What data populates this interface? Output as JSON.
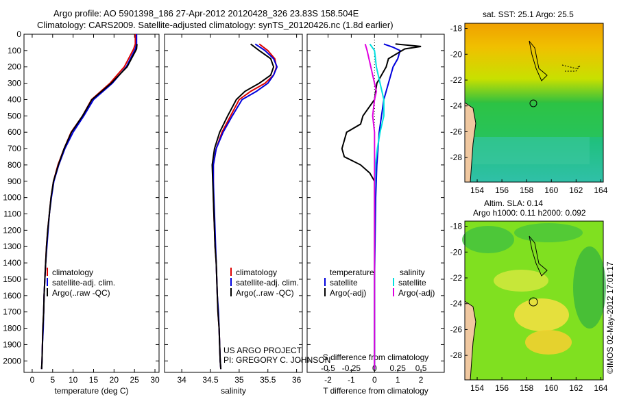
{
  "header": {
    "line1": "Argo profile: AO 5901398_186 27-Apr-2012 20120428_326 23.83S 158.504E",
    "line2": "Climatology: CARS2009. Satellite-adjusted climatology: synTS_20120426.nc (1.8d earlier)"
  },
  "map_top": {
    "title": "sat. SST: 25.1  Argo: 25.5",
    "x_ticks": [
      "154",
      "156",
      "158",
      "160",
      "162",
      "164"
    ],
    "y_ticks": [
      "-18",
      "-20",
      "-22",
      "-24",
      "-26",
      "-28"
    ]
  },
  "map_bottom": {
    "title1": "Altim. SLA: 0.14",
    "title2": "Argo h1000: 0.11  h2000: 0.092",
    "x_ticks": [
      "154",
      "156",
      "158",
      "160",
      "162",
      "164"
    ],
    "y_ticks": [
      "-18",
      "-20",
      "-22",
      "-24",
      "-26",
      "-28"
    ]
  },
  "credit": {
    "line1": "US ARGO PROJECT",
    "line2": "PI: GREGORY C. JOHNSON"
  },
  "timestamp": "©IMOS 02-May-2012 17:01:17",
  "colors": {
    "climatology": "#dd0000",
    "satellite": "#0000dd",
    "argo": "#000000",
    "sat_salinity": "#00e0e0",
    "argo_salinity": "#e000e0"
  },
  "legend": {
    "temp": [
      "climatology",
      "satellite-adj. clim.",
      "Argo(..raw -QC)"
    ],
    "sal": [
      "climatology",
      "satellite-adj. clim.",
      "Argo(..raw -QC)"
    ],
    "diff_t_title": "temperature",
    "diff_s_title": "salinity",
    "diff_t": [
      "satellite",
      "Argo(-adj)"
    ],
    "diff_s": [
      "satellite",
      "Argo(-adj)"
    ]
  },
  "chart_data": [
    {
      "type": "line",
      "xlabel": "temperature (deg C)",
      "x_ticks": [
        "0",
        "5",
        "10",
        "15",
        "20",
        "25",
        "30"
      ],
      "xlim": [
        -2,
        31
      ],
      "ylim": [
        0,
        2070
      ],
      "y_ticks": [
        "0",
        "100",
        "200",
        "300",
        "400",
        "500",
        "600",
        "700",
        "800",
        "900",
        "1000",
        "1100",
        "1200",
        "1300",
        "1400",
        "1500",
        "1600",
        "1700",
        "1800",
        "1900",
        "2000"
      ],
      "y_reversed": true,
      "series": [
        {
          "name": "climatology",
          "color": "#dd0000",
          "points": [
            [
              25.2,
              0
            ],
            [
              25.2,
              60
            ],
            [
              24.8,
              90
            ],
            [
              22.5,
              200
            ],
            [
              19,
              300
            ],
            [
              14.5,
              400
            ],
            [
              12.3,
              500
            ],
            [
              9.5,
              600
            ],
            [
              7.8,
              700
            ],
            [
              6.3,
              800
            ],
            [
              5.2,
              900
            ],
            [
              4.6,
              1000
            ],
            [
              4.2,
              1100
            ],
            [
              3.8,
              1200
            ],
            [
              3.5,
              1300
            ],
            [
              3.3,
              1400
            ],
            [
              3.1,
              1500
            ],
            [
              2.9,
              1600
            ],
            [
              2.8,
              1700
            ],
            [
              2.6,
              1800
            ],
            [
              2.5,
              1900
            ],
            [
              2.4,
              2000
            ],
            [
              2.3,
              2050
            ]
          ]
        },
        {
          "name": "satellite-adj. clim.",
          "color": "#0000dd",
          "points": [
            [
              25.5,
              0
            ],
            [
              25.5,
              60
            ],
            [
              25.2,
              90
            ],
            [
              23,
              200
            ],
            [
              19.6,
              300
            ],
            [
              15,
              400
            ],
            [
              12.6,
              500
            ],
            [
              10,
              600
            ],
            [
              8,
              700
            ],
            [
              6.5,
              800
            ],
            [
              5.3,
              900
            ],
            [
              4.7,
              1000
            ],
            [
              4.2,
              1100
            ],
            [
              3.9,
              1200
            ],
            [
              3.6,
              1300
            ],
            [
              3.3,
              1400
            ],
            [
              3.1,
              1500
            ],
            [
              2.9,
              1600
            ],
            [
              2.8,
              1700
            ],
            [
              2.7,
              1800
            ],
            [
              2.5,
              1900
            ],
            [
              2.4,
              2000
            ],
            [
              2.3,
              2050
            ]
          ]
        },
        {
          "name": "Argo(..raw -QC)",
          "color": "#000000",
          "points": [
            [
              25.6,
              60
            ],
            [
              25.5,
              90
            ],
            [
              25.3,
              100
            ],
            [
              23.2,
              200
            ],
            [
              19.3,
              300
            ],
            [
              14.6,
              400
            ],
            [
              12.3,
              500
            ],
            [
              9.6,
              600
            ],
            [
              7.8,
              700
            ],
            [
              6.4,
              800
            ],
            [
              5.2,
              900
            ],
            [
              4.6,
              1000
            ],
            [
              4.2,
              1100
            ],
            [
              3.8,
              1200
            ],
            [
              3.5,
              1300
            ],
            [
              3.3,
              1400
            ],
            [
              3.1,
              1500
            ],
            [
              2.9,
              1600
            ],
            [
              2.8,
              1700
            ],
            [
              2.6,
              1800
            ],
            [
              2.5,
              1900
            ],
            [
              2.4,
              2000
            ],
            [
              2.3,
              2050
            ]
          ]
        }
      ]
    },
    {
      "type": "line",
      "xlabel": "salinity",
      "x_ticks": [
        "34",
        "34.5",
        "35",
        "35.5",
        "36"
      ],
      "xlim": [
        33.7,
        36.1
      ],
      "ylim": [
        0,
        2070
      ],
      "y_reversed": true,
      "series": [
        {
          "name": "climatology",
          "color": "#dd0000",
          "points": [
            [
              35.35,
              60
            ],
            [
              35.5,
              100
            ],
            [
              35.62,
              150
            ],
            [
              35.65,
              200
            ],
            [
              35.6,
              250
            ],
            [
              35.45,
              300
            ],
            [
              35.2,
              350
            ],
            [
              35,
              400
            ],
            [
              34.85,
              500
            ],
            [
              34.7,
              600
            ],
            [
              34.6,
              700
            ],
            [
              34.55,
              800
            ],
            [
              34.55,
              900
            ],
            [
              34.55,
              1000
            ],
            [
              34.56,
              1100
            ],
            [
              34.57,
              1200
            ],
            [
              34.58,
              1300
            ],
            [
              34.6,
              1400
            ],
            [
              34.61,
              1500
            ],
            [
              34.62,
              1600
            ],
            [
              34.63,
              1700
            ],
            [
              34.65,
              1800
            ],
            [
              34.66,
              1900
            ],
            [
              34.67,
              2000
            ],
            [
              34.68,
              2050
            ]
          ]
        },
        {
          "name": "satellite-adj. clim.",
          "color": "#0000dd",
          "points": [
            [
              35.28,
              60
            ],
            [
              35.45,
              100
            ],
            [
              35.6,
              150
            ],
            [
              35.66,
              200
            ],
            [
              35.6,
              250
            ],
            [
              35.5,
              300
            ],
            [
              35.3,
              350
            ],
            [
              35.05,
              400
            ],
            [
              34.88,
              500
            ],
            [
              34.72,
              600
            ],
            [
              34.6,
              700
            ],
            [
              34.55,
              800
            ],
            [
              34.55,
              900
            ],
            [
              34.56,
              1000
            ],
            [
              34.57,
              1100
            ],
            [
              34.58,
              1200
            ],
            [
              34.59,
              1300
            ],
            [
              34.6,
              1400
            ],
            [
              34.61,
              1500
            ],
            [
              34.62,
              1600
            ],
            [
              34.64,
              1700
            ],
            [
              34.65,
              1800
            ],
            [
              34.66,
              1900
            ],
            [
              34.67,
              2000
            ],
            [
              34.68,
              2050
            ]
          ]
        },
        {
          "name": "Argo(..raw -QC)",
          "color": "#000000",
          "points": [
            [
              35.2,
              60
            ],
            [
              35.35,
              100
            ],
            [
              35.55,
              150
            ],
            [
              35.6,
              200
            ],
            [
              35.55,
              250
            ],
            [
              35.35,
              300
            ],
            [
              35.1,
              350
            ],
            [
              34.95,
              400
            ],
            [
              34.8,
              500
            ],
            [
              34.66,
              600
            ],
            [
              34.57,
              700
            ],
            [
              34.53,
              800
            ],
            [
              34.54,
              900
            ],
            [
              34.55,
              1000
            ],
            [
              34.56,
              1100
            ],
            [
              34.57,
              1200
            ],
            [
              34.58,
              1300
            ],
            [
              34.6,
              1400
            ],
            [
              34.61,
              1500
            ],
            [
              34.62,
              1600
            ],
            [
              34.63,
              1700
            ],
            [
              34.65,
              1800
            ],
            [
              34.66,
              1900
            ],
            [
              34.67,
              2000
            ],
            [
              34.68,
              2050
            ]
          ]
        }
      ]
    },
    {
      "type": "line",
      "xlabel": "T difference from climatology",
      "x_ticks": [
        "-2",
        "-1",
        "0",
        "1",
        "2"
      ],
      "xlim": [
        -2.9,
        3.0
      ],
      "x2label": "S difference from climatology",
      "x2_ticks": [
        "-0.5",
        "-0.25",
        "0",
        "0.25",
        "0.5"
      ],
      "x2lim": [
        -0.725,
        0.75
      ],
      "ylim": [
        0,
        2070
      ],
      "y_reversed": true,
      "series": [
        {
          "name": "temperature satellite",
          "axis": "T",
          "color": "#0000dd",
          "points": [
            [
              0.4,
              60
            ],
            [
              0.8,
              80
            ],
            [
              1.1,
              100
            ],
            [
              1.0,
              150
            ],
            [
              0.8,
              200
            ],
            [
              0.6,
              300
            ],
            [
              0.4,
              400
            ],
            [
              0.3,
              500
            ],
            [
              0.2,
              600
            ],
            [
              0.1,
              800
            ],
            [
              0.05,
              1000
            ],
            [
              0,
              1500
            ],
            [
              0,
              2050
            ]
          ]
        },
        {
          "name": "temperature Argo(-adj)",
          "axis": "T",
          "color": "#000000",
          "points": [
            [
              0.9,
              60
            ],
            [
              2.0,
              75
            ],
            [
              1.3,
              90
            ],
            [
              0.6,
              150
            ],
            [
              0.5,
              200
            ],
            [
              0.3,
              250
            ],
            [
              0.1,
              300
            ],
            [
              0,
              400
            ],
            [
              -0.5,
              500
            ],
            [
              -0.6,
              550
            ],
            [
              -1.2,
              600
            ],
            [
              -1.4,
              700
            ],
            [
              -1.3,
              750
            ],
            [
              -0.6,
              800
            ],
            [
              -0.2,
              850
            ],
            [
              0,
              900
            ],
            [
              0,
              1000
            ],
            [
              0,
              1500
            ],
            [
              0,
              2050
            ]
          ]
        },
        {
          "name": "salinity satellite",
          "axis": "S",
          "color": "#00e0e0",
          "points": [
            [
              -0.05,
              60
            ],
            [
              0,
              100
            ],
            [
              0.02,
              200
            ],
            [
              0.06,
              300
            ],
            [
              0.1,
              400
            ],
            [
              0.1,
              500
            ],
            [
              0.06,
              600
            ],
            [
              0.03,
              700
            ],
            [
              0.01,
              800
            ],
            [
              0,
              1000
            ],
            [
              0,
              2050
            ]
          ]
        },
        {
          "name": "salinity Argo(-adj)",
          "axis": "S",
          "color": "#e000e0",
          "points": [
            [
              -0.1,
              60
            ],
            [
              -0.08,
              100
            ],
            [
              -0.06,
              150
            ],
            [
              -0.04,
              200
            ],
            [
              -0.02,
              250
            ],
            [
              0,
              300
            ],
            [
              0.02,
              350
            ],
            [
              0,
              400
            ],
            [
              -0.02,
              500
            ],
            [
              0,
              600
            ],
            [
              0,
              700
            ],
            [
              0,
              800
            ],
            [
              0,
              1000
            ],
            [
              0,
              2050
            ]
          ]
        }
      ]
    }
  ]
}
